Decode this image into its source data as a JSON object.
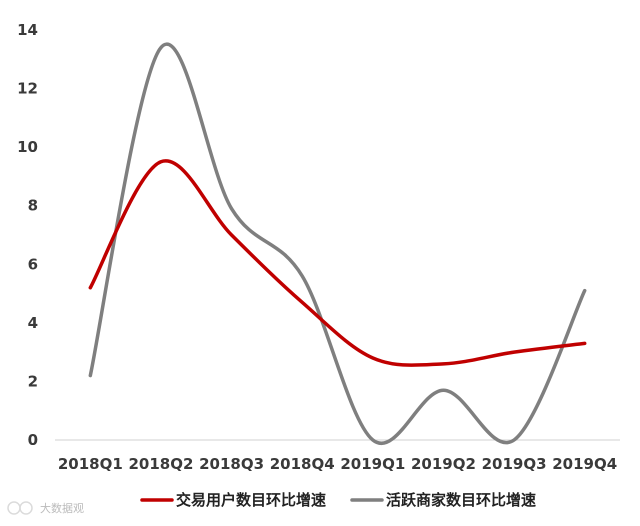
{
  "chart_data": {
    "type": "line",
    "title": "",
    "xlabel": "",
    "ylabel": "",
    "categories": [
      "2018Q1",
      "2018Q2",
      "2018Q3",
      "2018Q4",
      "2019Q1",
      "2019Q2",
      "2019Q3",
      "2019Q4"
    ],
    "ylim": [
      0,
      14
    ],
    "yticks": [
      0,
      2,
      4,
      6,
      8,
      10,
      12,
      14
    ],
    "grid": false,
    "legend_position": "bottom",
    "smooth": true,
    "series": [
      {
        "name": "交易用户数目环比增速",
        "color": "#c00000",
        "values": [
          5.2,
          9.5,
          7.0,
          4.7,
          2.8,
          2.6,
          3.0,
          3.3
        ]
      },
      {
        "name": "活跃商家数目环比增速",
        "color": "#7f7f7f",
        "values": [
          2.2,
          13.4,
          7.9,
          5.6,
          0.0,
          1.7,
          0.0,
          5.1
        ]
      }
    ]
  },
  "watermark": {
    "text": "大数据观",
    "icon": "watermark-logo-icon"
  }
}
